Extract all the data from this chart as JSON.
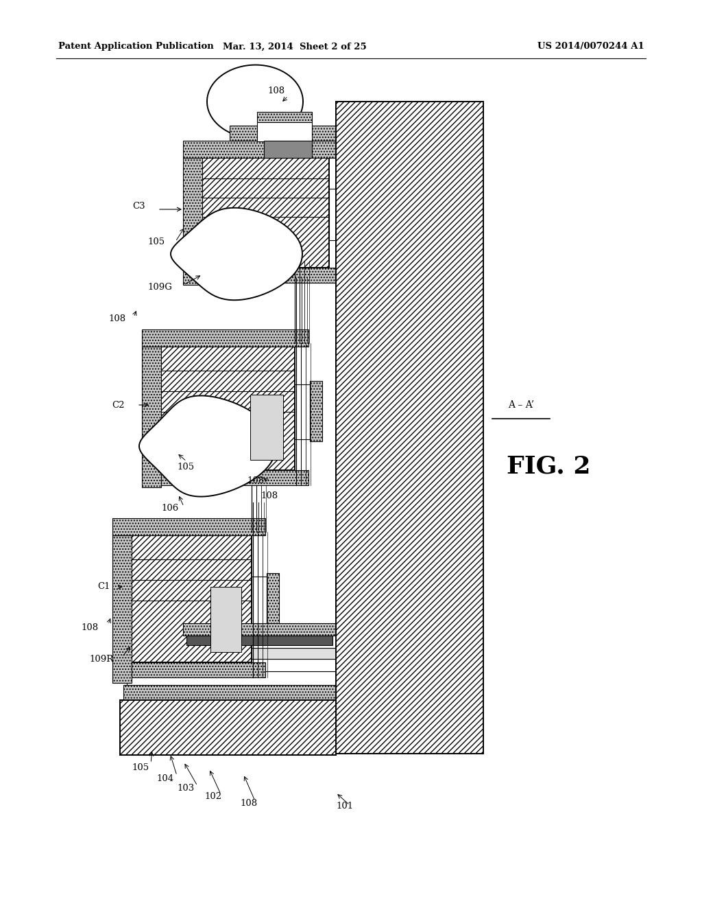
{
  "header_left": "Patent Application Publication",
  "header_mid": "Mar. 13, 2014  Sheet 2 of 25",
  "header_right": "US 2014/0070244 A1",
  "fig_label": "FIG. 2",
  "bg_color": "#ffffff",
  "line_color": "#000000",
  "dot_fill": "#cccccc",
  "hatch_fill": "white",
  "page_width": 10.24,
  "page_height": 13.2
}
